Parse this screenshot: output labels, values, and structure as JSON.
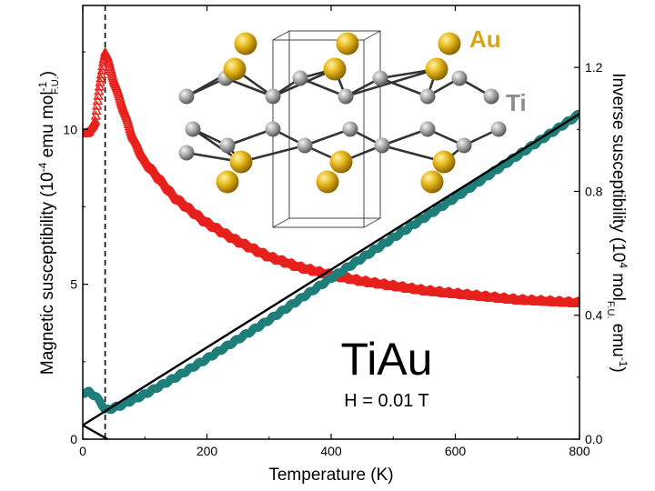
{
  "chart_data": {
    "type": "scatter",
    "xlabel": "Temperature (K)",
    "ylabel_left": {
      "main": "Magnetic susceptibility (",
      "pow": "10",
      "exp": "-4",
      "mid": " emu mol",
      "sub": "F.U.",
      "sup": "-1",
      "end": ")"
    },
    "ylabel_right": {
      "main": "Inverse susceptibility (",
      "pow": "10",
      "exp": "4",
      "mid": " mol",
      "sub": "F.U.",
      "tail": " emu",
      "sup": "-1",
      "end": ")"
    },
    "xlim": [
      0,
      800
    ],
    "ylim_left": [
      0,
      14
    ],
    "ylim_right": [
      0,
      1.4
    ],
    "x_ticks": [
      0,
      200,
      400,
      600,
      800
    ],
    "y_ticks_left": [
      0,
      5,
      10
    ],
    "y_ticks_right": [
      "0.0",
      "0.4",
      "0.8",
      "1.2"
    ],
    "annotations": {
      "material": "TiAu",
      "field": "H = 0.01 T",
      "atom_au": "Au",
      "atom_ti": "Ti"
    },
    "vertical_marker_x": 36,
    "series": [
      {
        "axis": "left",
        "color": "#e8201c",
        "marker": "triangle",
        "x": [
          2,
          10,
          20,
          28,
          33,
          36,
          40,
          50,
          60,
          80,
          100,
          150,
          200,
          250,
          300,
          350,
          400,
          450,
          500,
          550,
          600,
          650,
          700,
          750,
          800
        ],
        "y": [
          9.9,
          9.9,
          10.3,
          11.5,
          12.2,
          12.5,
          12.3,
          11.6,
          11.0,
          9.8,
          9.0,
          7.8,
          7.0,
          6.4,
          5.9,
          5.55,
          5.3,
          5.1,
          4.95,
          4.8,
          4.7,
          4.6,
          4.5,
          4.45,
          4.4
        ]
      },
      {
        "axis": "right",
        "color": "#1f7f7a",
        "marker": "circle",
        "x": [
          2,
          10,
          20,
          30,
          36,
          40,
          60,
          100,
          150,
          200,
          300,
          400,
          500,
          600,
          700,
          800
        ],
        "y": [
          0.15,
          0.152,
          0.14,
          0.115,
          0.095,
          0.095,
          0.108,
          0.145,
          0.2,
          0.26,
          0.385,
          0.52,
          0.65,
          0.78,
          0.915,
          1.05
        ]
      }
    ],
    "fit_line": {
      "color": "#000000",
      "x": [
        0,
        800
      ],
      "y": [
        0.045,
        1.05
      ]
    },
    "low_t_fit": {
      "color": "#000000",
      "x": [
        0,
        40
      ],
      "y": [
        0.045,
        0.0
      ]
    }
  }
}
